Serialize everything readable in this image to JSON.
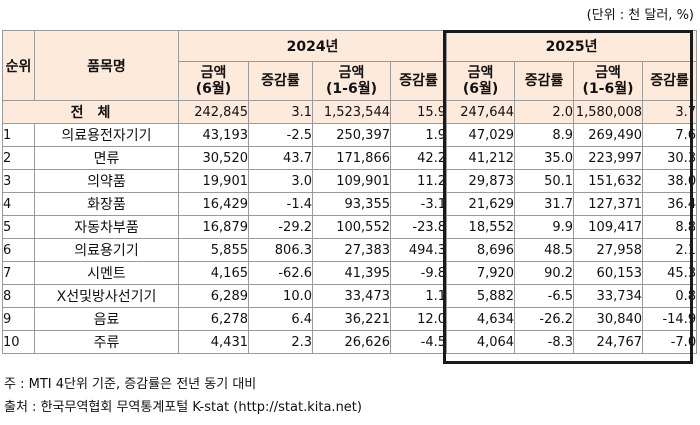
{
  "unit_note": "(단위 : 천 달러, %)",
  "headers": {
    "rank": "순위",
    "item": "품목명",
    "year1": "2024년",
    "year2": "2025년",
    "amount_6": [
      "금액",
      "(6월)"
    ],
    "growth": "증감률",
    "amount_1_6": [
      "금액",
      "(1-6월)"
    ]
  },
  "total": {
    "label": "전　체",
    "values": [
      "242,845",
      "3.1",
      "1,523,544",
      "15.9",
      "247,644",
      "2.0",
      "1,580,008",
      "3.7"
    ]
  },
  "rows": [
    {
      "rank": "1",
      "item": "의료용전자기기",
      "values": [
        "43,193",
        "-2.5",
        "250,397",
        "1.9",
        "47,029",
        "8.9",
        "269,490",
        "7.6"
      ]
    },
    {
      "rank": "2",
      "item": "면류",
      "values": [
        "30,520",
        "43.7",
        "171,866",
        "42.2",
        "41,212",
        "35.0",
        "223,997",
        "30.3"
      ]
    },
    {
      "rank": "3",
      "item": "의약품",
      "values": [
        "19,901",
        "3.0",
        "109,901",
        "11.2",
        "29,873",
        "50.1",
        "151,632",
        "38.0"
      ]
    },
    {
      "rank": "4",
      "item": "화장품",
      "values": [
        "16,429",
        "-1.4",
        "93,355",
        "-3.1",
        "21,629",
        "31.7",
        "127,371",
        "36.4"
      ]
    },
    {
      "rank": "5",
      "item": "자동차부품",
      "values": [
        "16,879",
        "-29.2",
        "100,552",
        "-23.8",
        "18,552",
        "9.9",
        "109,417",
        "8.8"
      ]
    },
    {
      "rank": "6",
      "item": "의료용기기",
      "values": [
        "5,855",
        "806.3",
        "27,383",
        "494.3",
        "8,696",
        "48.5",
        "27,958",
        "2.1"
      ]
    },
    {
      "rank": "7",
      "item": "시멘트",
      "values": [
        "4,165",
        "-62.6",
        "41,395",
        "-9.8",
        "7,920",
        "90.2",
        "60,153",
        "45.3"
      ]
    },
    {
      "rank": "8",
      "item": "X선및방사선기기",
      "values": [
        "6,289",
        "10.0",
        "33,473",
        "1.1",
        "5,882",
        "-6.5",
        "33,734",
        "0.8"
      ]
    },
    {
      "rank": "9",
      "item": "음료",
      "values": [
        "6,278",
        "6.4",
        "36,221",
        "12.0",
        "4,634",
        "-26.2",
        "30,840",
        "-14.9"
      ]
    },
    {
      "rank": "10",
      "item": "주류",
      "values": [
        "4,431",
        "2.3",
        "26,626",
        "-4.5",
        "4,064",
        "-8.3",
        "24,767",
        "-7.0"
      ]
    }
  ],
  "footnotes": {
    "note": "주 : MTI 4단위 기준, 증감률은 전년 동기 대비",
    "source": "출처 : 한국무역협회 무역통계포털 K-stat (http://stat.kita.net)"
  }
}
